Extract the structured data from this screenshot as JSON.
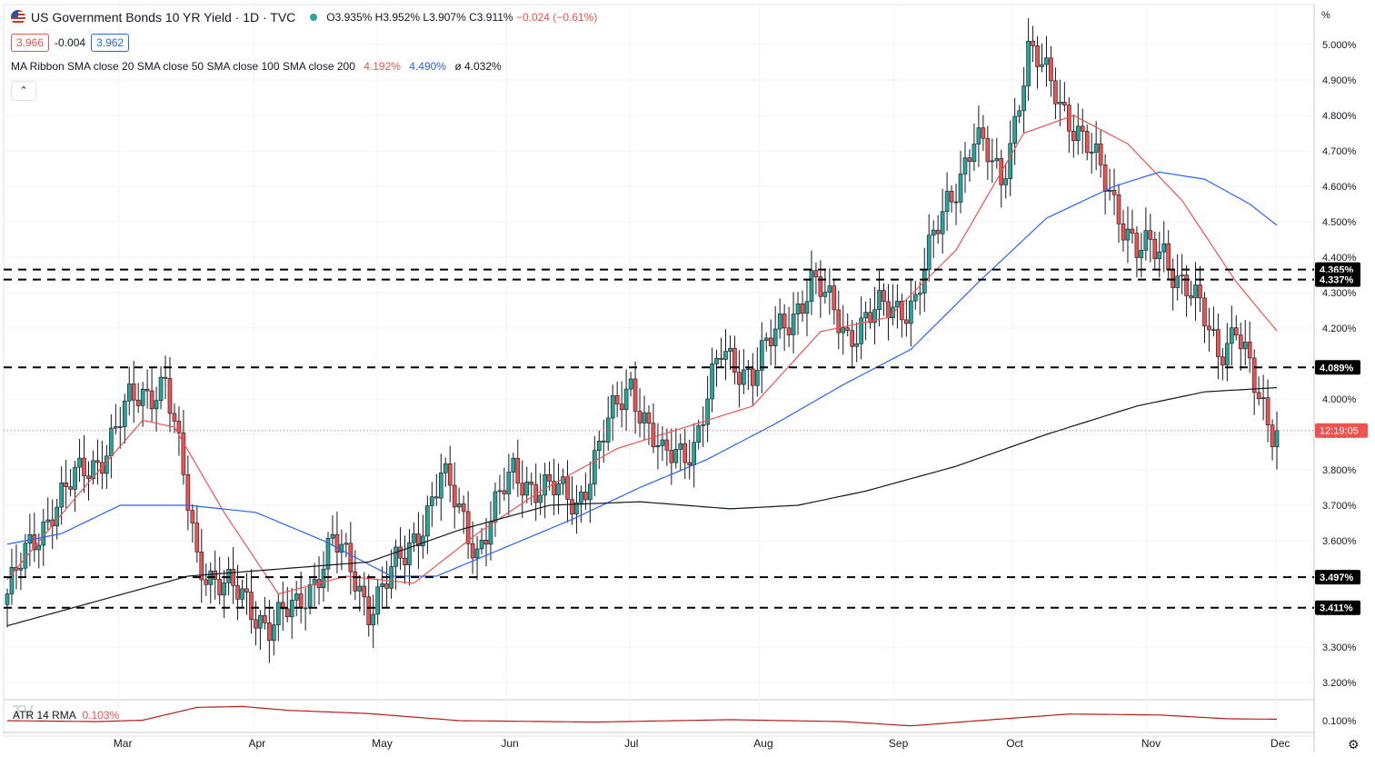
{
  "header": {
    "title": "US Government Bonds 10 YR Yield · 1D · TVC",
    "ohlc": {
      "o": "O3.935%",
      "h": "H3.952%",
      "l": "L3.907%",
      "c": "C3.911%",
      "chg": "−0.024 (−0.61%)"
    },
    "box_left": "3.966",
    "box_mid": "-0.004",
    "box_right": "3.962",
    "collapse_label": "⌃"
  },
  "indicator": {
    "label": "MA Ribbon SMA close 20 SMA close 50 SMA close 100 SMA close 200",
    "v1": "4.192%",
    "v2": "4.490%",
    "v3_prefix": "ø",
    "v3": "4.032%"
  },
  "atr": {
    "label": "ATR 14 RMA",
    "value": "0.103%",
    "logo": "TV"
  },
  "axis": {
    "unit_label": "%",
    "x_ticks": [
      "Mar",
      "Apr",
      "May",
      "Jun",
      "Jul",
      "Aug",
      "Sep",
      "Oct",
      "Nov",
      "Dec"
    ]
  },
  "colors": {
    "up": "#26a69a",
    "down": "#ef5350",
    "sma20": "#ef5350",
    "sma50": "#2962ff",
    "sma200": "#131722",
    "atr": "#b71c1c"
  },
  "chart_data": {
    "type": "candlestick",
    "title": "US Government Bonds 10 YR Yield · 1D · TVC",
    "ylim": [
      3.15,
      5.05
    ],
    "y_ticks": [
      "5.000%",
      "4.900%",
      "4.800%",
      "4.700%",
      "4.600%",
      "4.500%",
      "4.400%",
      "4.300%",
      "4.200%",
      "4.100%",
      "4.000%",
      "3.900%",
      "3.800%",
      "3.700%",
      "3.600%",
      "3.500%",
      "3.400%",
      "3.300%",
      "3.200%"
    ],
    "y_tick_values": [
      5.0,
      4.9,
      4.8,
      4.7,
      4.6,
      4.5,
      4.4,
      4.3,
      4.2,
      4.1,
      4.0,
      3.9,
      3.8,
      3.7,
      3.6,
      3.5,
      3.4,
      3.3,
      3.2
    ],
    "x_categories": [
      "Mar",
      "Apr",
      "May",
      "Jun",
      "Jul",
      "Aug",
      "Sep",
      "Oct",
      "Nov",
      "Dec"
    ],
    "horizontal_levels": [
      {
        "value": 4.365,
        "label": "4.365%"
      },
      {
        "value": 4.337,
        "label": "4.337%"
      },
      {
        "value": 4.089,
        "label": "4.089%"
      },
      {
        "value": 3.497,
        "label": "3.497%"
      },
      {
        "value": 3.411,
        "label": "3.411%"
      }
    ],
    "last_price": {
      "value": 3.911,
      "label": "12:19:05"
    },
    "close_anchors": [
      {
        "x": 0,
        "c": 3.45
      },
      {
        "x": 10,
        "c": 3.7
      },
      {
        "x": 20,
        "c": 3.83
      },
      {
        "x": 27,
        "c": 3.98
      },
      {
        "x": 35,
        "c": 4.06
      },
      {
        "x": 42,
        "c": 3.55
      },
      {
        "x": 50,
        "c": 3.45
      },
      {
        "x": 58,
        "c": 3.37
      },
      {
        "x": 64,
        "c": 3.4
      },
      {
        "x": 72,
        "c": 3.6
      },
      {
        "x": 80,
        "c": 3.42
      },
      {
        "x": 88,
        "c": 3.55
      },
      {
        "x": 96,
        "c": 3.78
      },
      {
        "x": 104,
        "c": 3.58
      },
      {
        "x": 112,
        "c": 3.79
      },
      {
        "x": 120,
        "c": 3.74
      },
      {
        "x": 126,
        "c": 3.71
      },
      {
        "x": 133,
        "c": 3.92
      },
      {
        "x": 138,
        "c": 4.05
      },
      {
        "x": 145,
        "c": 3.82
      },
      {
        "x": 152,
        "c": 3.88
      },
      {
        "x": 158,
        "c": 4.12
      },
      {
        "x": 165,
        "c": 4.08
      },
      {
        "x": 172,
        "c": 4.21
      },
      {
        "x": 178,
        "c": 4.33
      },
      {
        "x": 186,
        "c": 4.19
      },
      {
        "x": 194,
        "c": 4.25
      },
      {
        "x": 201,
        "c": 4.28
      },
      {
        "x": 208,
        "c": 4.56
      },
      {
        "x": 214,
        "c": 4.73
      },
      {
        "x": 220,
        "c": 4.62
      },
      {
        "x": 226,
        "c": 4.97
      },
      {
        "x": 232,
        "c": 4.88
      },
      {
        "x": 238,
        "c": 4.72
      },
      {
        "x": 244,
        "c": 4.6
      },
      {
        "x": 250,
        "c": 4.41
      },
      {
        "x": 256,
        "c": 4.42
      },
      {
        "x": 262,
        "c": 4.29
      },
      {
        "x": 268,
        "c": 4.14
      },
      {
        "x": 272,
        "c": 4.21
      },
      {
        "x": 276,
        "c": 4.02
      },
      {
        "x": 279,
        "c": 3.93
      },
      {
        "x": 281,
        "c": 3.911
      }
    ],
    "series": [
      {
        "name": "SMA close 20",
        "anchors": [
          {
            "x": 0,
            "c": 3.49
          },
          {
            "x": 15,
            "c": 3.72
          },
          {
            "x": 30,
            "c": 3.94
          },
          {
            "x": 37,
            "c": 3.92
          },
          {
            "x": 48,
            "c": 3.68
          },
          {
            "x": 60,
            "c": 3.45
          },
          {
            "x": 75,
            "c": 3.5
          },
          {
            "x": 90,
            "c": 3.48
          },
          {
            "x": 104,
            "c": 3.62
          },
          {
            "x": 118,
            "c": 3.74
          },
          {
            "x": 135,
            "c": 3.86
          },
          {
            "x": 150,
            "c": 3.92
          },
          {
            "x": 165,
            "c": 3.98
          },
          {
            "x": 180,
            "c": 4.19
          },
          {
            "x": 195,
            "c": 4.23
          },
          {
            "x": 210,
            "c": 4.42
          },
          {
            "x": 225,
            "c": 4.75
          },
          {
            "x": 236,
            "c": 4.8
          },
          {
            "x": 248,
            "c": 4.72
          },
          {
            "x": 260,
            "c": 4.56
          },
          {
            "x": 272,
            "c": 4.33
          },
          {
            "x": 281,
            "c": 4.192
          }
        ]
      },
      {
        "name": "SMA close 50",
        "anchors": [
          {
            "x": 0,
            "c": 3.59
          },
          {
            "x": 12,
            "c": 3.62
          },
          {
            "x": 25,
            "c": 3.7
          },
          {
            "x": 40,
            "c": 3.7
          },
          {
            "x": 55,
            "c": 3.68
          },
          {
            "x": 70,
            "c": 3.6
          },
          {
            "x": 85,
            "c": 3.5
          },
          {
            "x": 95,
            "c": 3.5
          },
          {
            "x": 110,
            "c": 3.58
          },
          {
            "x": 125,
            "c": 3.66
          },
          {
            "x": 140,
            "c": 3.75
          },
          {
            "x": 155,
            "c": 3.83
          },
          {
            "x": 170,
            "c": 3.93
          },
          {
            "x": 185,
            "c": 4.04
          },
          {
            "x": 200,
            "c": 4.14
          },
          {
            "x": 215,
            "c": 4.33
          },
          {
            "x": 230,
            "c": 4.51
          },
          {
            "x": 245,
            "c": 4.6
          },
          {
            "x": 255,
            "c": 4.64
          },
          {
            "x": 265,
            "c": 4.62
          },
          {
            "x": 275,
            "c": 4.55
          },
          {
            "x": 281,
            "c": 4.49
          }
        ]
      },
      {
        "name": "SMA close 200",
        "anchors": [
          {
            "x": 0,
            "c": 3.36
          },
          {
            "x": 20,
            "c": 3.43
          },
          {
            "x": 40,
            "c": 3.5
          },
          {
            "x": 60,
            "c": 3.52
          },
          {
            "x": 80,
            "c": 3.54
          },
          {
            "x": 100,
            "c": 3.63
          },
          {
            "x": 120,
            "c": 3.7
          },
          {
            "x": 140,
            "c": 3.71
          },
          {
            "x": 160,
            "c": 3.69
          },
          {
            "x": 175,
            "c": 3.7
          },
          {
            "x": 190,
            "c": 3.74
          },
          {
            "x": 210,
            "c": 3.81
          },
          {
            "x": 230,
            "c": 3.9
          },
          {
            "x": 250,
            "c": 3.98
          },
          {
            "x": 265,
            "c": 4.02
          },
          {
            "x": 281,
            "c": 4.032
          }
        ]
      }
    ],
    "atr_series": {
      "name": "ATR 14 RMA",
      "anchors": [
        {
          "x": 0,
          "c": 0.1
        },
        {
          "x": 20,
          "c": 0.098
        },
        {
          "x": 30,
          "c": 0.101
        },
        {
          "x": 42,
          "c": 0.128
        },
        {
          "x": 52,
          "c": 0.13
        },
        {
          "x": 62,
          "c": 0.122
        },
        {
          "x": 80,
          "c": 0.115
        },
        {
          "x": 100,
          "c": 0.1
        },
        {
          "x": 130,
          "c": 0.097
        },
        {
          "x": 160,
          "c": 0.102
        },
        {
          "x": 185,
          "c": 0.098
        },
        {
          "x": 200,
          "c": 0.089
        },
        {
          "x": 215,
          "c": 0.1
        },
        {
          "x": 235,
          "c": 0.114
        },
        {
          "x": 255,
          "c": 0.112
        },
        {
          "x": 270,
          "c": 0.104
        },
        {
          "x": 281,
          "c": 0.103
        }
      ]
    },
    "month_starts": [
      {
        "label": "Mar",
        "x": 19
      },
      {
        "label": "Apr",
        "x": 42
      },
      {
        "label": "May",
        "x": 63
      },
      {
        "label": "Jun",
        "x": 85
      },
      {
        "label": "Jul",
        "x": 106
      },
      {
        "label": "Aug",
        "x": 128
      },
      {
        "label": "Sep",
        "x": 151
      },
      {
        "label": "Oct",
        "x": 171
      },
      {
        "label": "Nov",
        "x": 194
      },
      {
        "label": "Dec",
        "x": 216
      }
    ]
  }
}
